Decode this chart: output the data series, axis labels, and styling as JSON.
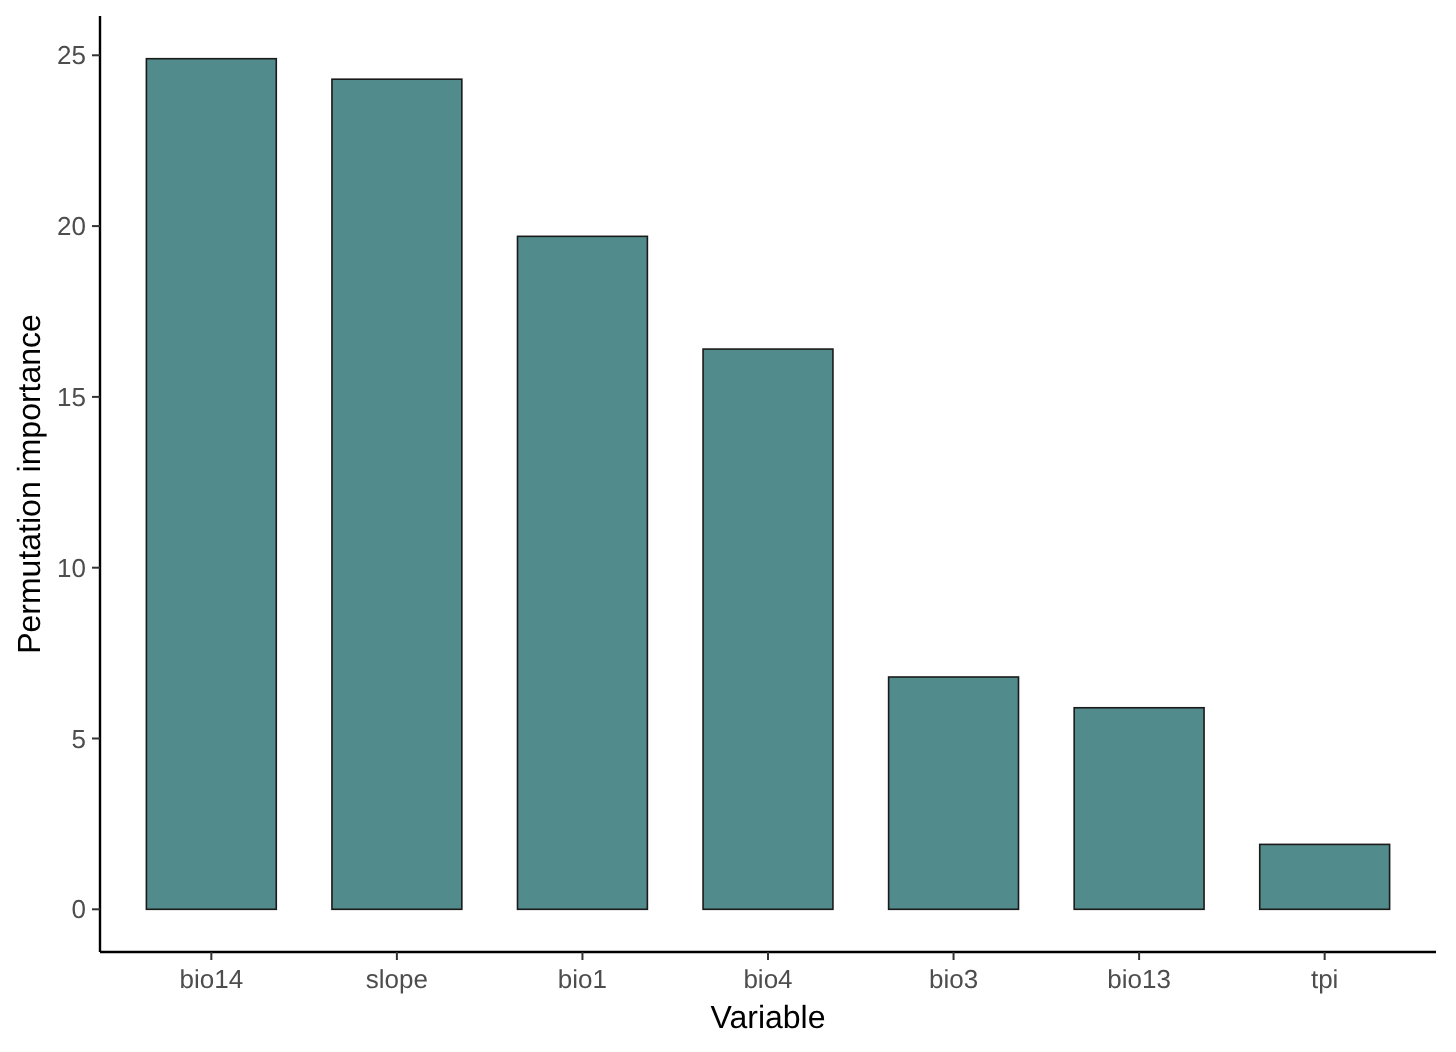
{
  "chart_data": {
    "type": "bar",
    "xlabel": "Variable",
    "ylabel": "Permutation importance",
    "categories": [
      "bio14",
      "slope",
      "bio1",
      "bio4",
      "bio3",
      "bio13",
      "tpi"
    ],
    "values": [
      24.9,
      24.3,
      19.7,
      16.4,
      6.8,
      5.9,
      1.9
    ],
    "color": "#528b8b",
    "ylim": [
      -1.25,
      26.15
    ],
    "yticks": [
      0,
      5,
      10,
      15,
      20,
      25
    ],
    "grid": false
  }
}
